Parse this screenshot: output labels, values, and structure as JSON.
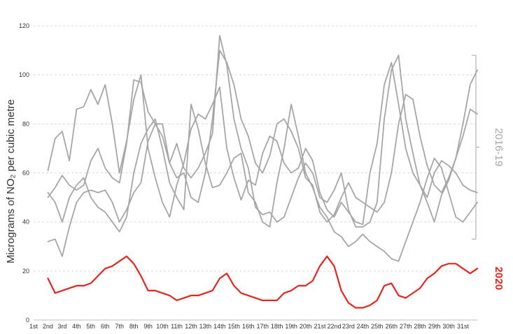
{
  "chart_data": {
    "type": "line",
    "title": "",
    "xlabel": "",
    "ylabel": "Micrograms of NO₂ per cubic metre",
    "ylim": [
      0,
      120
    ],
    "yticks": [
      "0",
      "20",
      "40",
      "60",
      "80",
      "100",
      "120"
    ],
    "yticks_values": [
      0,
      20,
      40,
      60,
      80,
      100,
      120
    ],
    "grid": true,
    "categories": [
      "1st",
      "2nd",
      "3rd",
      "4th",
      "5th",
      "6th",
      "7th",
      "8th",
      "9th",
      "10th",
      "11th",
      "12th",
      "13th",
      "14th",
      "15th",
      "16th",
      "17th",
      "18th",
      "19th",
      "20th",
      "21st",
      "22nd",
      "23rd",
      "24th",
      "25th",
      "26th",
      "27th",
      "28th",
      "29th",
      "30th",
      "31st"
    ],
    "annotations": [
      {
        "text": "2016-19",
        "color": "#a6a6a6"
      },
      {
        "text": "2020",
        "color": "#e3261e"
      }
    ],
    "series": [
      {
        "group": "2016-19",
        "color": "#a6a6a6",
        "x": [
          2.0,
          2.5,
          3.0,
          3.5,
          4.0,
          4.5,
          5.0,
          5.5,
          6.0,
          6.5,
          7.0,
          7.5,
          8.0,
          8.5,
          9.0,
          9.5,
          10.0,
          10.5,
          11.0,
          11.5,
          12.0,
          12.5,
          13.0,
          13.5,
          14.0,
          14.5,
          15.0,
          15.5,
          16.0,
          16.5,
          17.0,
          17.5,
          18.0,
          18.5,
          19.0,
          19.5,
          20.0,
          20.5,
          21.0,
          21.5,
          22.0,
          22.5,
          23.0,
          23.5,
          24.0,
          24.5,
          25.0,
          25.5,
          26.0,
          26.5,
          27.0,
          27.5,
          28.0,
          28.5,
          29.0,
          29.5,
          30.0,
          30.5,
          31.0,
          31.5,
          32.0
        ],
        "values": [
          61,
          74,
          77,
          65,
          86,
          87,
          94,
          88,
          96,
          80,
          60,
          73,
          90,
          100,
          70,
          58,
          48,
          42,
          55,
          64,
          78,
          84,
          82,
          88,
          95,
          70,
          58,
          49,
          57,
          55,
          68,
          75,
          73,
          64,
          60,
          62,
          70,
          65,
          52,
          45,
          42,
          48,
          44,
          40,
          39,
          60,
          72,
          96,
          105,
          88,
          70,
          60,
          55,
          48,
          40,
          51,
          57,
          66,
          75,
          86,
          84
        ]
      },
      {
        "group": "2016-19",
        "color": "#a6a6a6",
        "x": [
          2.0,
          2.5,
          3.0,
          3.5,
          4.0,
          4.5,
          5.0,
          5.5,
          6.0,
          6.5,
          7.0,
          7.5,
          8.0,
          8.5,
          9.0,
          9.5,
          10.0,
          10.5,
          11.0,
          11.5,
          12.0,
          12.5,
          13.0,
          13.5,
          14.0,
          14.5,
          15.0,
          15.5,
          16.0,
          16.5,
          17.0,
          17.5,
          18.0,
          18.5,
          19.0,
          19.5,
          20.0,
          20.5,
          21.0,
          21.5,
          22.0,
          22.5,
          23.0,
          23.5,
          24.0,
          24.5,
          25.0,
          25.5,
          26.0,
          26.5,
          27.0,
          27.5,
          28.0,
          28.5,
          29.0,
          29.5,
          30.0,
          30.5,
          31.0,
          31.5,
          32.0
        ],
        "values": [
          50,
          54,
          59,
          55,
          53,
          55,
          65,
          70,
          62,
          58,
          56,
          72,
          98,
          97,
          85,
          80,
          75,
          64,
          58,
          60,
          50,
          48,
          60,
          82,
          110,
          105,
          96,
          82,
          75,
          64,
          60,
          67,
          80,
          82,
          77,
          70,
          58,
          55,
          44,
          40,
          43,
          50,
          56,
          50,
          48,
          46,
          44,
          48,
          60,
          80,
          92,
          90,
          75,
          63,
          55,
          52,
          58,
          66,
          80,
          96,
          102
        ]
      },
      {
        "group": "2016-19",
        "color": "#a6a6a6",
        "x": [
          2.0,
          2.5,
          3.0,
          3.5,
          4.0,
          4.5,
          5.0,
          5.5,
          6.0,
          6.5,
          7.0,
          7.5,
          8.0,
          8.5,
          9.0,
          9.5,
          10.0,
          10.5,
          11.0,
          11.5,
          12.0,
          12.5,
          13.0,
          13.5,
          14.0,
          14.5,
          15.0,
          15.5,
          16.0,
          16.5,
          17.0,
          17.5,
          18.0,
          18.5,
          19.0,
          19.5,
          20.0,
          20.5,
          21.0,
          21.5,
          22.0,
          22.5,
          23.0,
          23.5,
          24.0,
          24.5,
          25.0,
          25.5,
          26.0,
          26.5,
          27.0,
          27.5,
          28.0,
          28.5,
          29.0,
          29.5,
          30.0,
          30.5,
          31.0,
          31.5,
          32.0
        ],
        "values": [
          32,
          33,
          26,
          38,
          48,
          52,
          53,
          52,
          53,
          48,
          40,
          45,
          52,
          56,
          73,
          80,
          80,
          64,
          72,
          62,
          58,
          62,
          68,
          76,
          116,
          104,
          82,
          70,
          62,
          46,
          43,
          44,
          40,
          42,
          50,
          58,
          64,
          60,
          50,
          48,
          53,
          60,
          45,
          38,
          38,
          40,
          48,
          82,
          102,
          108,
          82,
          68,
          55,
          50,
          60,
          65,
          63,
          60,
          55,
          53,
          52
        ]
      },
      {
        "group": "2016-19",
        "color": "#a6a6a6",
        "x": [
          2.0,
          2.5,
          3.0,
          3.5,
          4.0,
          4.5,
          5.0,
          5.5,
          6.0,
          6.5,
          7.0,
          7.5,
          8.0,
          8.5,
          9.0,
          9.5,
          10.0,
          10.5,
          11.0,
          11.5,
          12.0,
          12.5,
          13.0,
          13.5,
          14.0,
          14.5,
          15.0,
          15.5,
          16.0,
          16.5,
          17.0,
          17.5,
          18.0,
          18.5,
          19.0,
          19.5,
          20.0,
          20.5,
          21.0,
          21.5,
          22.0,
          22.5,
          23.0,
          23.5,
          24.0,
          24.5,
          25.0,
          25.5,
          26.0,
          26.5,
          27.0,
          27.5,
          28.0,
          28.5,
          29.0,
          29.5,
          30.0,
          30.5,
          31.0,
          31.5,
          32.0
        ],
        "values": [
          52,
          48,
          40,
          50,
          55,
          58,
          50,
          46,
          44,
          40,
          36,
          42,
          60,
          72,
          78,
          82,
          70,
          56,
          50,
          45,
          88,
          78,
          64,
          54,
          55,
          60,
          66,
          68,
          52,
          48,
          40,
          38,
          56,
          70,
          88,
          75,
          60,
          54,
          46,
          42,
          36,
          34,
          30,
          32,
          35,
          32,
          30,
          28,
          25,
          24,
          32,
          40,
          48,
          58,
          66,
          62,
          52,
          42,
          40,
          44,
          48
        ]
      },
      {
        "group": "2020",
        "color": "#e3261e",
        "x": [
          2.0,
          2.5,
          3.0,
          3.5,
          4.0,
          4.5,
          5.0,
          5.5,
          6.0,
          6.5,
          7.0,
          7.5,
          8.0,
          8.5,
          9.0,
          9.5,
          10.0,
          10.5,
          11.0,
          11.5,
          12.0,
          12.5,
          13.0,
          13.5,
          14.0,
          14.5,
          15.0,
          15.5,
          16.0,
          16.5,
          17.0,
          17.5,
          18.0,
          18.5,
          19.0,
          19.5,
          20.0,
          20.5,
          21.0,
          21.5,
          22.0,
          22.5,
          23.0,
          23.5,
          24.0,
          24.5,
          25.0,
          25.5,
          26.0,
          26.5,
          27.0,
          27.5,
          28.0,
          28.5,
          29.0,
          29.5,
          30.0,
          30.5,
          31.0,
          31.5,
          32.0
        ],
        "values": [
          17,
          11,
          12,
          13,
          14,
          14,
          15,
          18,
          21,
          22,
          24,
          26,
          23,
          18,
          12,
          12,
          11,
          10,
          8,
          9,
          10,
          10,
          11,
          12,
          17,
          19,
          14,
          11,
          10,
          9,
          8,
          8,
          8,
          11,
          12,
          14,
          14,
          16,
          22,
          26,
          22,
          12,
          7,
          5,
          5,
          6,
          8,
          14,
          15,
          10,
          9,
          11,
          13,
          17,
          19,
          22,
          23,
          23,
          21,
          19,
          21
        ]
      }
    ]
  }
}
